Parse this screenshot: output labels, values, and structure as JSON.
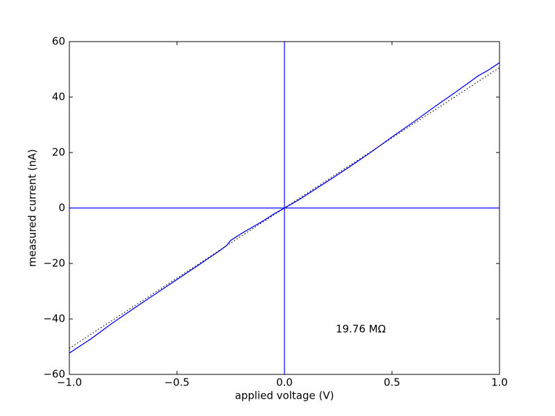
{
  "chart_data": {
    "type": "line",
    "xlabel": "applied voltage (V)",
    "ylabel": "measured current (nA)",
    "annotation": "19.76 MΩ",
    "xlim": [
      -1,
      1
    ],
    "ylim": [
      -60,
      60
    ],
    "xticks": [
      {
        "value": -1,
        "label": "−1.0"
      },
      {
        "value": -0.5,
        "label": "−0.5"
      },
      {
        "value": 0,
        "label": "0.0"
      },
      {
        "value": 0.5,
        "label": "0.5"
      },
      {
        "value": 1,
        "label": "1.0"
      }
    ],
    "yticks": [
      {
        "value": -60,
        "label": "−60"
      },
      {
        "value": -40,
        "label": "−40"
      },
      {
        "value": -20,
        "label": "−20"
      },
      0,
      20,
      40,
      60
    ],
    "zero_lines_color": "#0000ff",
    "series": [
      {
        "color": "#0000ff",
        "style": "solid",
        "x": [
          -1,
          -0.9,
          -0.8,
          -0.7,
          -0.6,
          -0.5,
          -0.4,
          -0.3,
          -0.27,
          -0.25,
          -0.2,
          -0.1,
          -0.05,
          0,
          0.05,
          0.07,
          0.1,
          0.2,
          0.3,
          0.4,
          0.5,
          0.6,
          0.7,
          0.8,
          0.9,
          0.95,
          1
        ],
        "values": [
          -52.3,
          -47.2,
          -41.5,
          -36.2,
          -31.0,
          -25.8,
          -20.6,
          -15.3,
          -13.6,
          -11.7,
          -9.2,
          -4.7,
          -2.2,
          0,
          2.2,
          3.1,
          4.6,
          9.6,
          14.7,
          20.0,
          25.6,
          31.0,
          36.6,
          42.0,
          47.6,
          49.8,
          52.4
        ]
      },
      {
        "color": "#000000",
        "style": "dotted",
        "x": [
          -1,
          1
        ],
        "values": [
          -50.6,
          50.6
        ]
      }
    ]
  }
}
